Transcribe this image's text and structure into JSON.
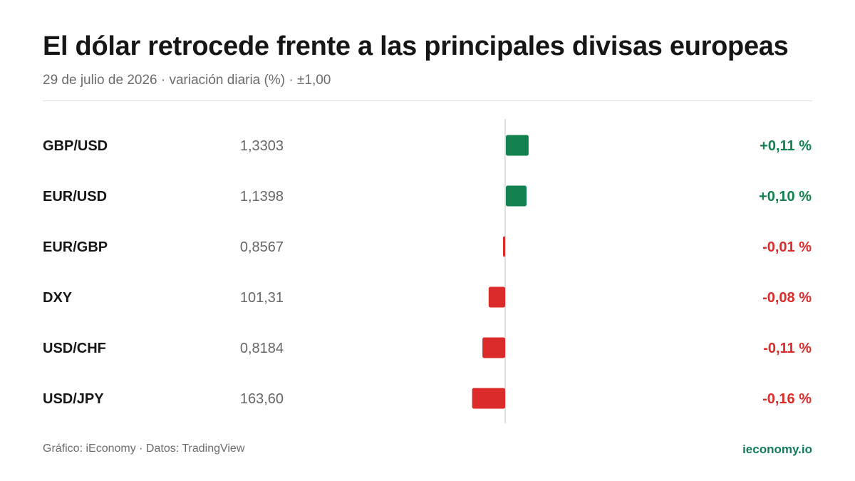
{
  "header": {
    "title": "El dólar retrocede frente a las principales divisas europeas",
    "subtitle": "29 de julio de 2026 · variación diaria (%) · ±1,00"
  },
  "footer": {
    "source": "Gráfico: iEconomy · Datos: TradingView",
    "brand": "ieconomy.io"
  },
  "colors": {
    "positive": "#12804f",
    "negative": "#db2b2b",
    "axis": "#d6d6d6",
    "label": "#161616",
    "price": "#666666"
  },
  "chart_data": {
    "type": "bar",
    "orientation": "horizontal",
    "xlim": [
      -1.0,
      1.0
    ],
    "grid": false,
    "categories": [
      "GBP/USD",
      "EUR/USD",
      "EUR/GBP",
      "DXY",
      "USD/CHF",
      "USD/JPY"
    ],
    "prices": [
      "1,3303",
      "1,1398",
      "0,8567",
      "101,31",
      "0,8184",
      "163,60"
    ],
    "values": [
      0.11,
      0.1,
      -0.01,
      -0.08,
      -0.11,
      -0.16
    ],
    "value_labels": [
      "+0,11 %",
      "+0,10 %",
      "-0,01 %",
      "-0,08 %",
      "-0,11 %",
      "-0,16 %"
    ]
  }
}
